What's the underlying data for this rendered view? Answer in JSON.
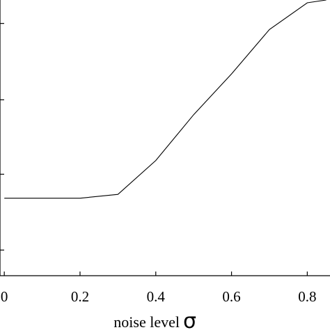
{
  "chart_data": {
    "type": "line",
    "title": "",
    "xlabel": "noise level",
    "xlabel_symbol": "σ",
    "ylabel": "",
    "xlim": [
      -0.015,
      0.86
    ],
    "ylim": [
      0.0,
      1.0
    ],
    "x_ticks": [
      0,
      0.2,
      0.4,
      0.6,
      0.8
    ],
    "x_tick_labels": [
      "0",
      "0.2",
      "0.4",
      "0.6",
      "0.8"
    ],
    "y_ticks": [
      0.093,
      0.368,
      0.638,
      0.915
    ],
    "grid": false,
    "series": [
      {
        "name": "",
        "color": "#000000",
        "x": [
          0,
          0.1,
          0.2,
          0.3,
          0.4,
          0.5,
          0.6,
          0.7,
          0.8,
          0.85
        ],
        "y": [
          0.281,
          0.281,
          0.281,
          0.295,
          0.418,
          0.584,
          0.732,
          0.893,
          0.99,
          1.0
        ]
      }
    ]
  }
}
